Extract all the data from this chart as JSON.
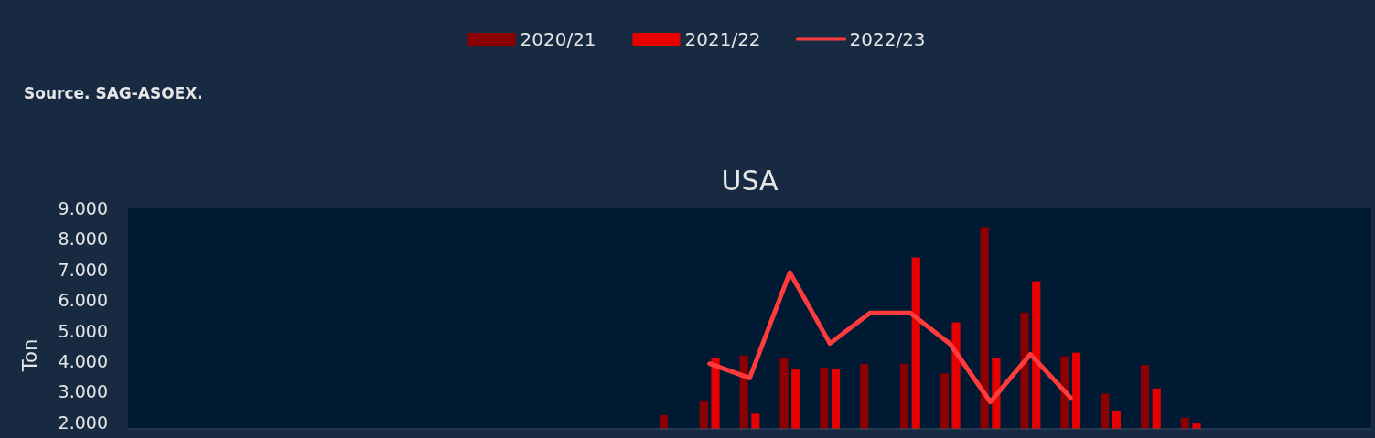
{
  "chart_data": {
    "type": "bar",
    "title": "USA",
    "ylabel": "Ton",
    "annotations": [
      "Source. SAG-ASOEX."
    ],
    "categories": [
      null,
      null,
      null,
      null,
      null,
      null,
      null,
      null,
      null,
      null,
      null,
      null,
      null,
      null,
      null,
      null,
      null,
      null,
      null,
      null,
      null,
      null,
      null,
      null,
      null,
      null,
      null,
      null,
      null,
      null,
      null
    ],
    "series": [
      {
        "name": "2020/21",
        "color": "#8b0000",
        "values": [
          null,
          null,
          null,
          null,
          null,
          null,
          null,
          null,
          null,
          null,
          null,
          null,
          null,
          2250,
          2730,
          4200,
          4130,
          3800,
          3920,
          3930,
          3610,
          8390,
          5600,
          4170,
          2950,
          3890,
          2160,
          null,
          null,
          null,
          null
        ]
      },
      {
        "name": "2021/22",
        "color": "#e60000",
        "values": [
          null,
          null,
          null,
          null,
          null,
          null,
          null,
          null,
          null,
          null,
          null,
          null,
          null,
          null,
          4100,
          2300,
          3740,
          3750,
          null,
          7400,
          5280,
          4110,
          6620,
          4290,
          2380,
          3120,
          1980,
          null,
          null,
          null,
          null
        ]
      },
      {
        "name": "2022/23",
        "type": "line",
        "color": "#ff3b3b",
        "values": [
          null,
          null,
          null,
          null,
          null,
          null,
          null,
          null,
          null,
          null,
          null,
          null,
          null,
          null,
          3930,
          3460,
          6910,
          4590,
          5590,
          5590,
          4570,
          2680,
          4240,
          2820,
          null,
          null,
          null,
          null,
          null,
          null,
          null
        ]
      }
    ],
    "ylim": [
      1800,
      9000
    ],
    "yticks": [
      {
        "value": 2000,
        "label": "2.000"
      },
      {
        "value": 3000,
        "label": "3.000"
      },
      {
        "value": 4000,
        "label": "4.000"
      },
      {
        "value": 5000,
        "label": "5.000"
      },
      {
        "value": 6000,
        "label": "6.000"
      },
      {
        "value": 7000,
        "label": "7.000"
      },
      {
        "value": 8000,
        "label": "8.000"
      },
      {
        "value": 9000,
        "label": "9.000"
      }
    ],
    "grid": false,
    "legend": "top"
  }
}
